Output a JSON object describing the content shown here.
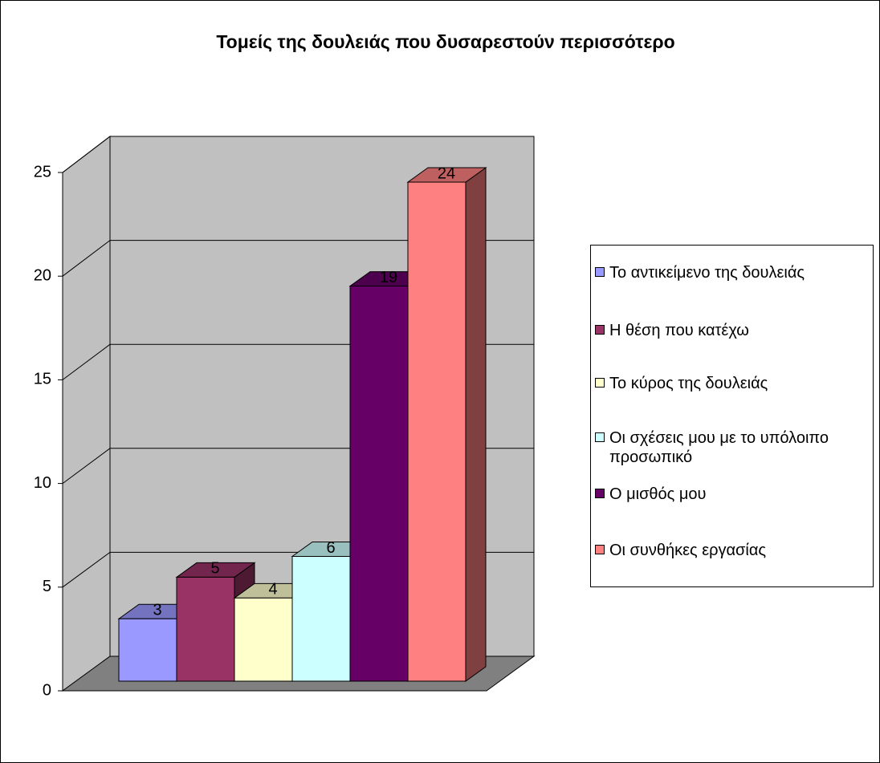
{
  "chart_data": {
    "type": "bar3d",
    "title": "Τομείς της δουλειάς που δυσαρεστούν περισσότερο",
    "categories": [
      null
    ],
    "series": [
      {
        "name": "Το αντικείμενο της δουλειάς",
        "color": "#9999ff",
        "values": [
          3
        ]
      },
      {
        "name": "Η θέση που κατέχω",
        "color": "#993366",
        "values": [
          5
        ]
      },
      {
        "name": "Το κύρος της δουλειάς",
        "color": "#ffffcc",
        "values": [
          4
        ]
      },
      {
        "name": "Οι σχέσεις μου με το υπόλοιπο προσωπικό",
        "color": "#ccffff",
        "values": [
          6
        ]
      },
      {
        "name": "Ο μισθός μου",
        "color": "#660066",
        "values": [
          19
        ]
      },
      {
        "name": "Οι συνθήκες εργασίας",
        "color": "#ff8080",
        "values": [
          24
        ]
      }
    ],
    "ylim": [
      0,
      25
    ],
    "yticks": [
      0,
      5,
      10,
      15,
      20,
      25
    ],
    "grid": true,
    "legend": "right"
  }
}
